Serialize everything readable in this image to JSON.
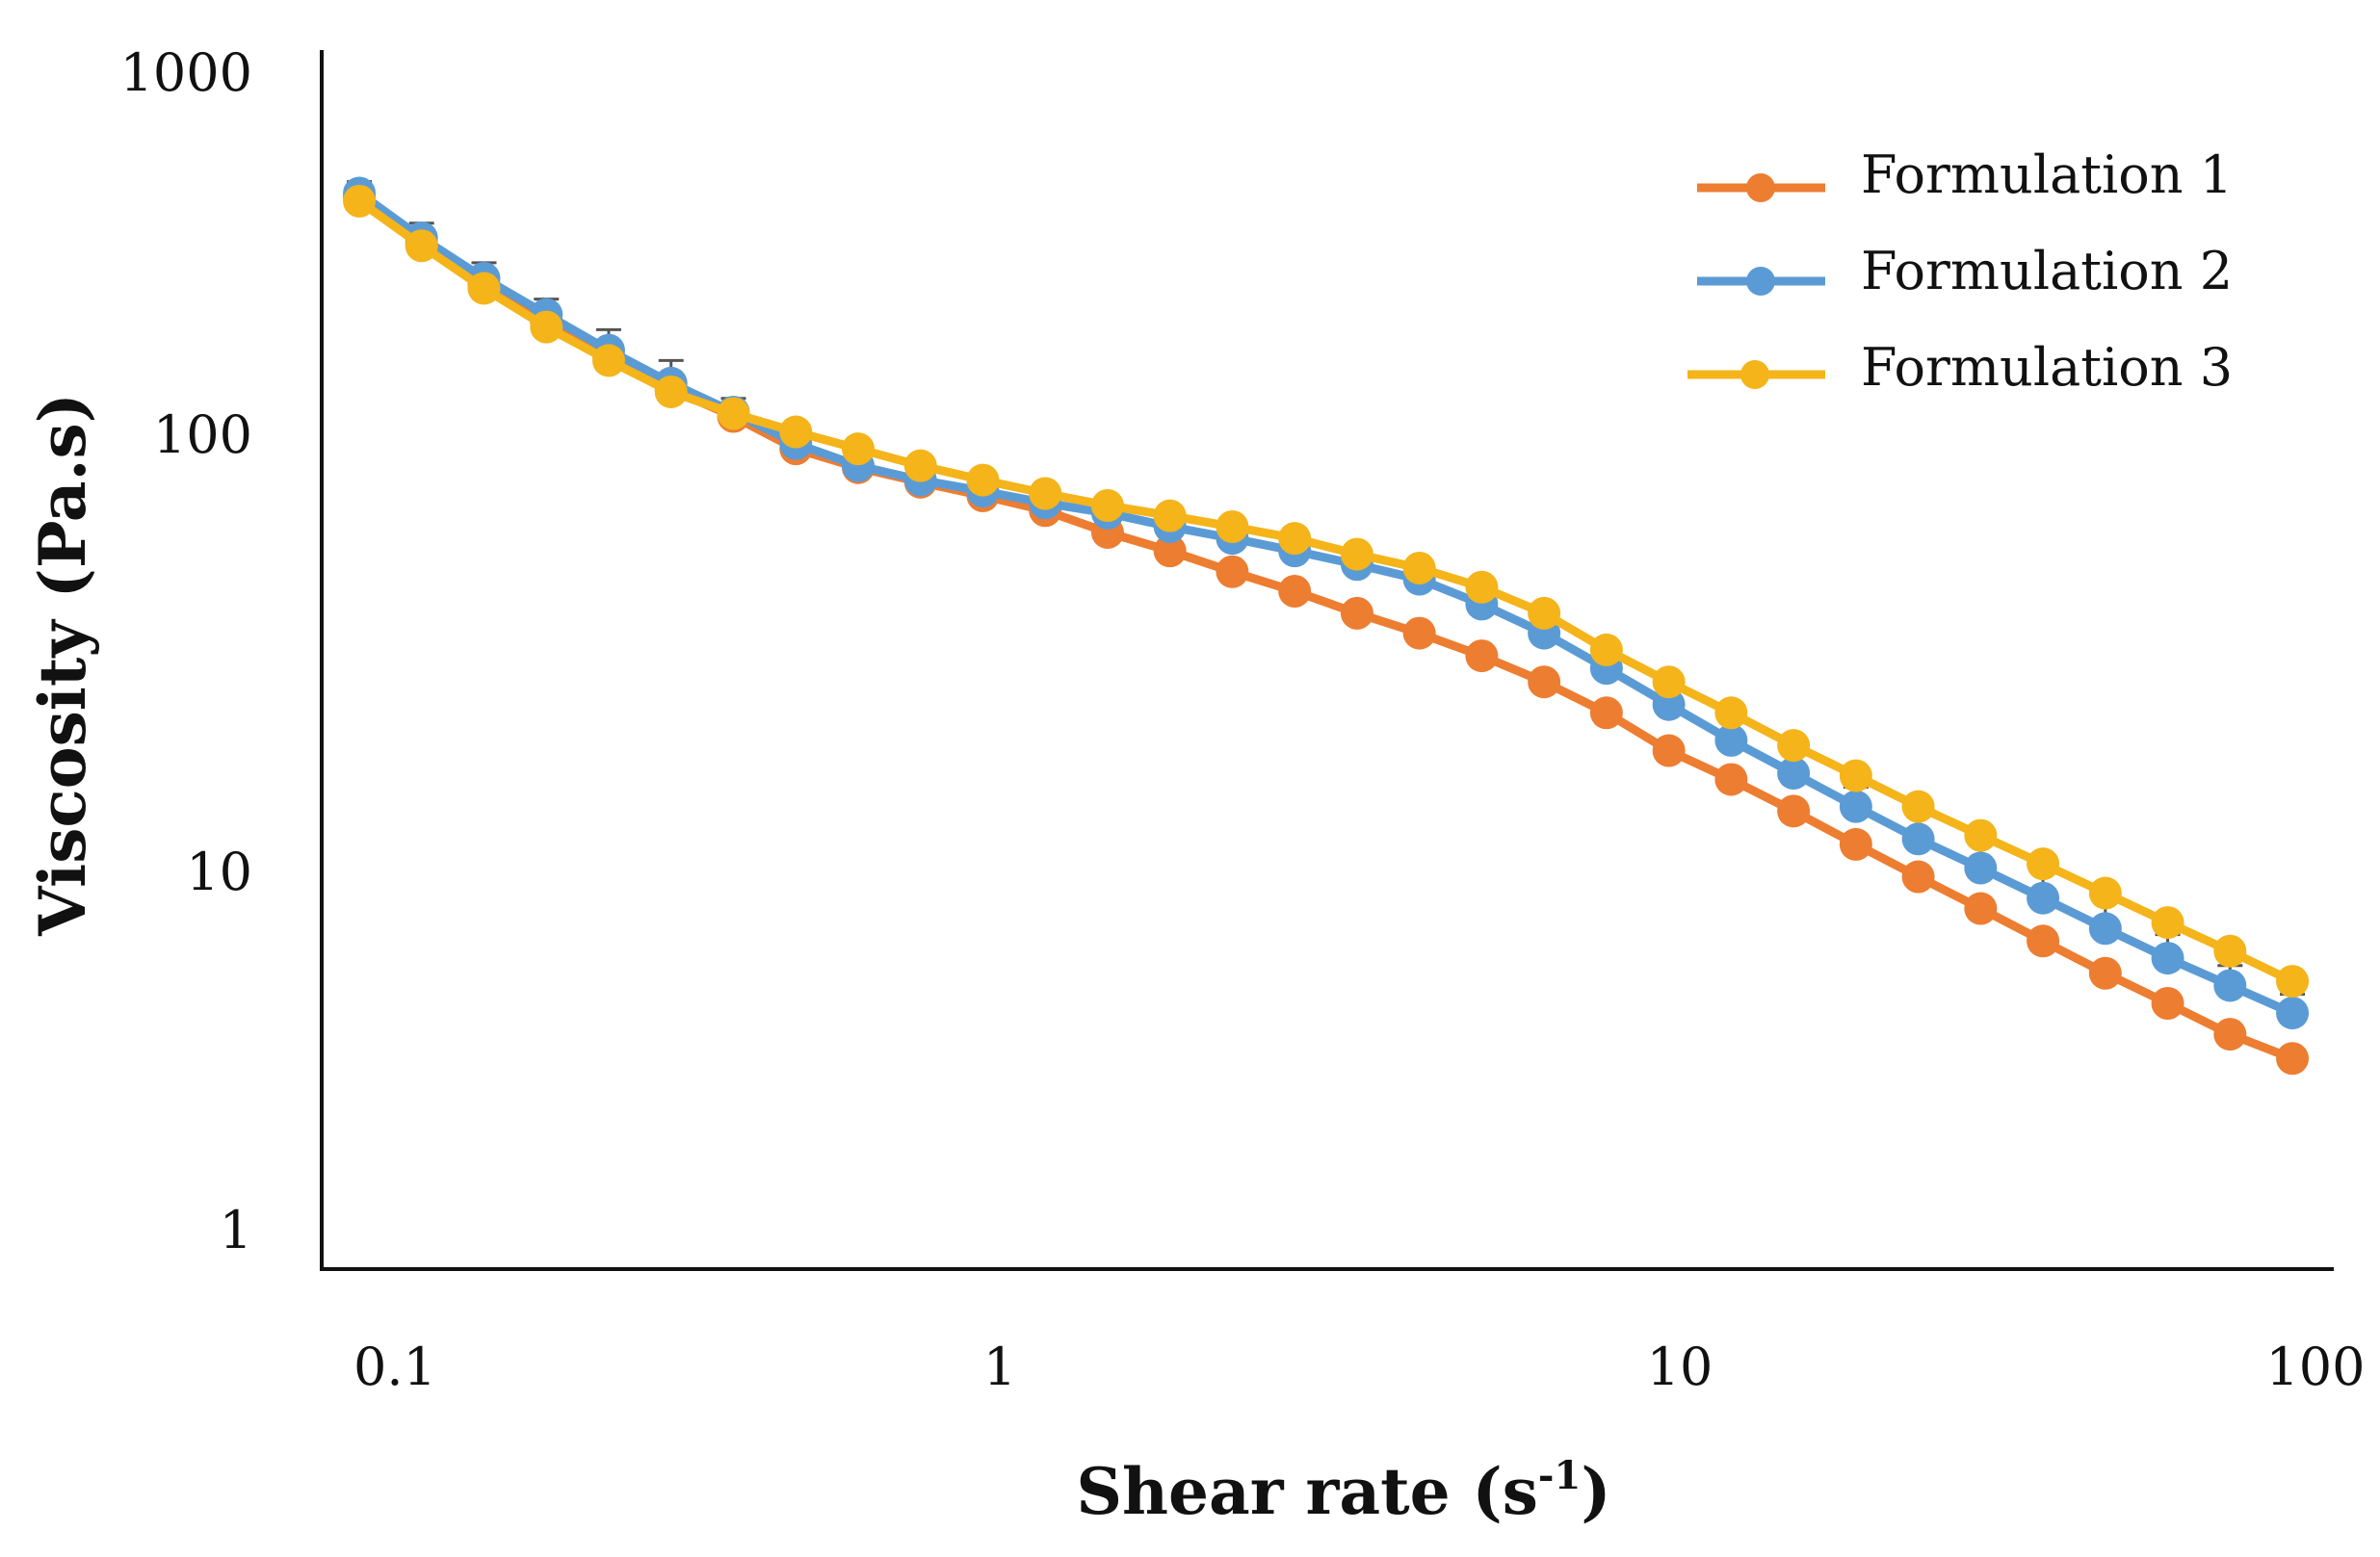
{
  "chart_data": {
    "type": "line",
    "title": "",
    "xlabel_main": "Shear rate (s",
    "xlabel_sup": "-1",
    "xlabel_close": ")",
    "ylabel": "Viscosity (Pa.s)",
    "xscale": "log",
    "yscale": "log",
    "xlim": [
      0.075,
      100
    ],
    "ylim": [
      0.75,
      1000
    ],
    "grid": false,
    "legend_position": "top-right",
    "x_ticks": [
      0.1,
      1,
      10,
      100
    ],
    "x_tick_labels": [
      "0.1",
      "1",
      "10",
      "100"
    ],
    "y_ticks": [
      1,
      10,
      100,
      1000
    ],
    "y_tick_labels": [
      "1",
      "10",
      "100",
      "1000"
    ],
    "x": [
      0.0858,
      0.1072,
      0.134,
      0.1675,
      0.2093,
      0.2616,
      0.327,
      0.4087,
      0.5108,
      0.6384,
      0.7979,
      0.9972,
      1.2464,
      1.5577,
      1.9468,
      2.4332,
      3.0411,
      3.8008,
      4.7503,
      5.9371,
      7.4203,
      9.274,
      11.591,
      14.487,
      18.106,
      22.629,
      28.283,
      35.348,
      44.179,
      55.216,
      69.01,
      86.251
    ],
    "series": [
      {
        "name": "Formulation 1",
        "color": "#ED7D31",
        "values": [
          420,
          320,
          250,
          200,
          165,
          135,
          115,
          95,
          85,
          78,
          72,
          66,
          58,
          52,
          46,
          41,
          36,
          32,
          28,
          24,
          20,
          16,
          13.5,
          11.2,
          9.2,
          7.6,
          6.3,
          5.2,
          4.3,
          3.6,
          3.0,
          2.6
        ],
        "error": [
          25,
          20,
          15,
          12,
          10,
          9,
          7,
          6,
          4,
          3,
          3,
          2,
          2,
          2,
          2,
          1.5,
          1.5,
          1,
          1,
          1,
          0.8,
          0.6,
          0.5,
          0.4,
          0.3,
          0.3,
          0.2,
          0.2,
          0.2,
          0.15,
          0.15,
          0.1
        ]
      },
      {
        "name": "Formulation 2",
        "color": "#5B9BD5",
        "values": [
          430,
          330,
          260,
          210,
          170,
          140,
          118,
          98,
          86,
          79,
          74,
          69,
          65,
          60,
          56,
          52,
          48,
          44,
          38,
          32,
          26,
          21,
          17,
          14,
          11.5,
          9.5,
          8.0,
          6.7,
          5.6,
          4.7,
          4.0,
          3.4
        ],
        "error": [
          30,
          30,
          25,
          20,
          22,
          20,
          10,
          8,
          5,
          4,
          3,
          3,
          2,
          2,
          2,
          2,
          2,
          2,
          1.5,
          1.2,
          1,
          0.8,
          0.6,
          0.6,
          1.4,
          1.5,
          1.3,
          1.1,
          1.0,
          0.7,
          0.5,
          0.4
        ]
      },
      {
        "name": "Formulation 3",
        "color": "#F4B41A",
        "values": [
          410,
          315,
          245,
          195,
          160,
          133,
          117,
          105,
          95,
          86,
          79,
          73,
          68,
          64,
          60,
          56,
          51,
          47,
          42,
          36,
          29,
          24,
          20,
          16.5,
          13.8,
          11.5,
          9.7,
          8.2,
          6.9,
          5.8,
          4.9,
          4.1
        ],
        "error": [
          20,
          15,
          12,
          10,
          8,
          7,
          6,
          5,
          4,
          3,
          3,
          2,
          2,
          2,
          2,
          2,
          1.5,
          1.5,
          1.2,
          1,
          0.8,
          0.6,
          0.5,
          0.4,
          0.3,
          0.3,
          0.2,
          0.2,
          0.2,
          0.15,
          0.15,
          0.1
        ]
      }
    ]
  }
}
